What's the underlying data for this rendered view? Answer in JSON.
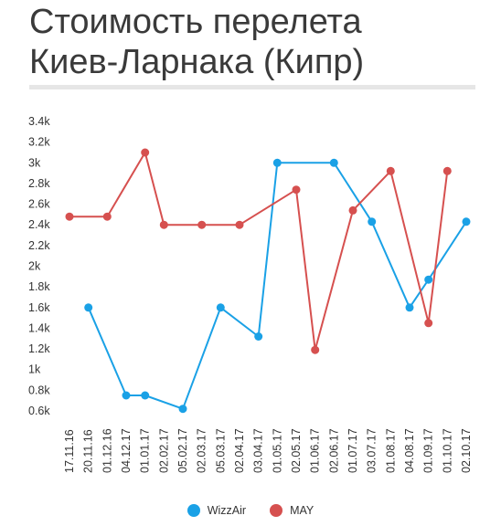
{
  "title": {
    "line1": "Стоимость перелета",
    "line2": "Киев-Ларнака (Кипр)"
  },
  "chart_data": {
    "type": "line",
    "categories": [
      "17.11.16",
      "20.11.16",
      "01.12.16",
      "04.12.17",
      "01.01.17",
      "02.02.17",
      "05.02.17",
      "02.03.17",
      "05.03.17",
      "02.04.17",
      "03.04.17",
      "01.05.17",
      "02.05.17",
      "01.06.17",
      "02.06.17",
      "01.07.17",
      "03.07.17",
      "01.08.17",
      "04.08.17",
      "01.09.17",
      "01.10.17",
      "02.10.17"
    ],
    "y_ticks": [
      "0.6k",
      "0.8k",
      "1k",
      "1.2k",
      "1.4k",
      "1.6k",
      "1.8k",
      "2k",
      "2.2k",
      "2.4k",
      "2.6k",
      "2.8k",
      "3k",
      "3.2k",
      "3.4k"
    ],
    "ylim": [
      600,
      3400
    ],
    "grid": false,
    "legend_position": "bottom",
    "series": [
      {
        "name": "WizzAir",
        "color": "#1aa1e6",
        "values": [
          null,
          1600,
          null,
          750,
          750,
          null,
          620,
          null,
          1600,
          null,
          1320,
          3000,
          null,
          null,
          3000,
          null,
          2430,
          null,
          1600,
          1870,
          null,
          2430
        ]
      },
      {
        "name": "MAY",
        "color": "#d6504f",
        "values": [
          2480,
          null,
          2480,
          null,
          3100,
          2400,
          null,
          2400,
          null,
          2400,
          null,
          null,
          2740,
          1190,
          null,
          2540,
          null,
          2920,
          null,
          1450,
          2920,
          null
        ]
      }
    ]
  }
}
